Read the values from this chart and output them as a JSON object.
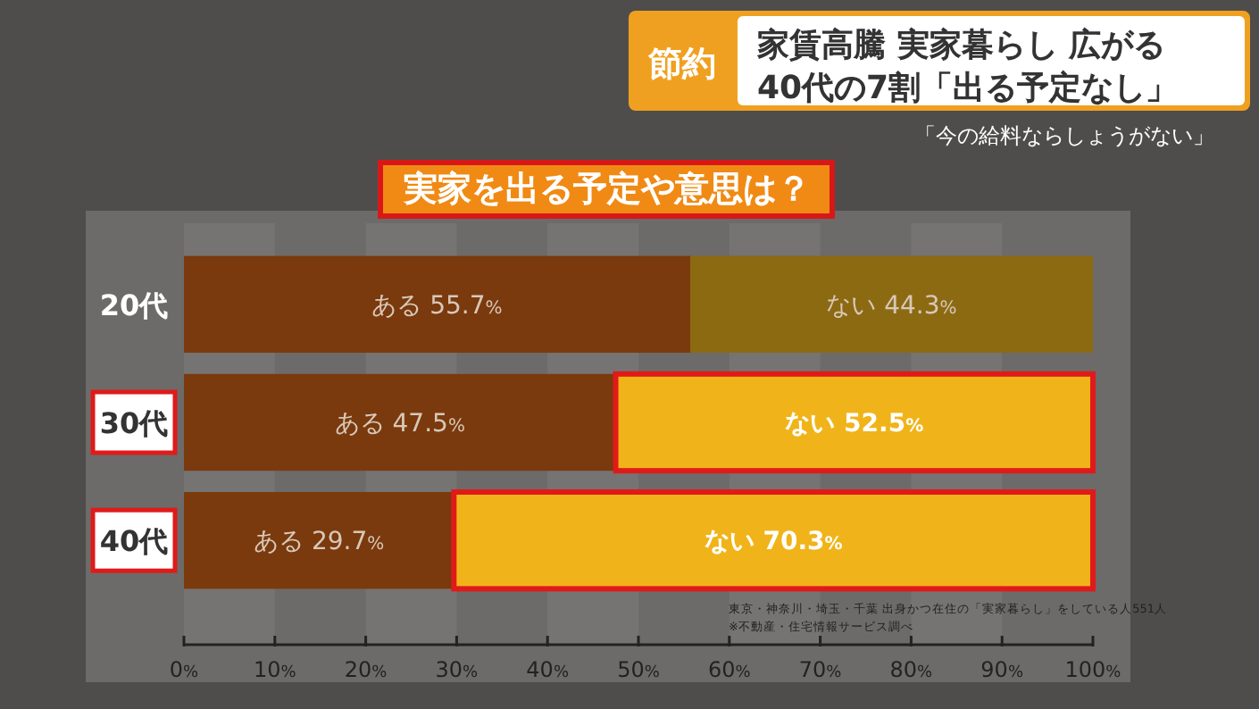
{
  "chart_data": {
    "type": "bar",
    "orientation": "horizontal",
    "stacked": true,
    "title": "実家を出る予定や意思は？",
    "annotations": [
      "節約",
      "家賃高騰 実家暮らし 広がる",
      "40代の7割「出る予定なし」",
      "「今の給料ならしょうがない」",
      "東京・神奈川・埼玉・千葉 出身かつ在住の「実家暮らし」をしている人551人",
      "※不動産・住宅情報サービス調べ"
    ],
    "categories": [
      "20代",
      "30代",
      "40代"
    ],
    "series": [
      {
        "color": "#7a3a0e",
        "values": [
          55.7,
          47.5,
          29.7
        ],
        "value_labels": [
          "ある 55.7%",
          "ある 47.5%",
          "ある 29.7%"
        ]
      },
      {
        "colors": [
          "#8c6a12",
          "#f0b41a",
          "#f0b41a"
        ],
        "values": [
          44.3,
          52.5,
          70.3
        ],
        "value_labels": [
          "ない 44.3%",
          "ない 52.5%",
          "ない 70.3%"
        ]
      }
    ],
    "xlim": [
      0,
      100
    ],
    "xticks": [
      {
        "value": 0,
        "label": "0%"
      },
      {
        "value": 10,
        "label": "10%"
      },
      {
        "value": 20,
        "label": "20%"
      },
      {
        "value": 30,
        "label": "30%"
      },
      {
        "value": 40,
        "label": "40%"
      },
      {
        "value": 50,
        "label": "50%"
      },
      {
        "value": 60,
        "label": "60%"
      },
      {
        "value": 70,
        "label": "70%"
      },
      {
        "value": 80,
        "label": "80%"
      },
      {
        "value": 90,
        "label": "90%"
      },
      {
        "value": 100,
        "label": "100%"
      }
    ],
    "grid": false
  }
}
